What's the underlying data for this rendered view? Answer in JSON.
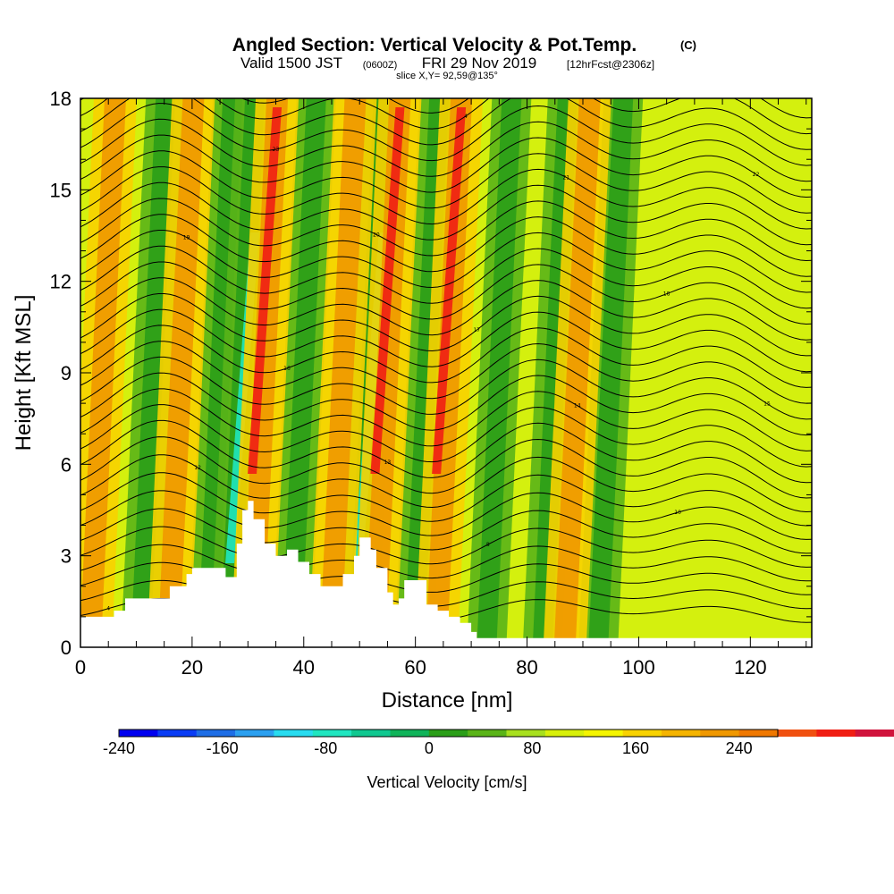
{
  "title": {
    "main": "Angled Section: Vertical Velocity & Pot.Temp.",
    "main_units": "(C)",
    "valid_prefix": "Valid 1500 JST",
    "valid_utc": "(0600Z)",
    "valid_date": "FRI 29 Nov 2019",
    "forecast": "[12hrFcst@2306z]",
    "slice": "slice X,Y= 92,59@135°"
  },
  "chart_data": {
    "type": "heatmap",
    "xlabel": "Distance [nm]",
    "ylabel": "Height [Kft MSL]",
    "xlim": [
      0,
      131
    ],
    "ylim": [
      0,
      18
    ],
    "x_ticks": [
      0,
      20,
      40,
      60,
      80,
      100,
      120
    ],
    "y_ticks": [
      0,
      3,
      6,
      9,
      12,
      15,
      18
    ],
    "grid": false,
    "colorbar": {
      "label": "Vertical Velocity [cm/s]",
      "range": [
        -240,
        270
      ],
      "step": 30,
      "tick_labels": [
        "-240",
        "-160",
        "-80",
        "0",
        "80",
        "160",
        "240"
      ],
      "tick_values": [
        -240,
        -160,
        -80,
        0,
        80,
        160,
        240
      ],
      "colors": [
        "#0000f0",
        "#0a3cf5",
        "#1e6ee6",
        "#2ba0f0",
        "#28dcf0",
        "#20e6c0",
        "#10c890",
        "#10b45a",
        "#2a9e18",
        "#5ab418",
        "#a8e01e",
        "#d8f00a",
        "#f5f500",
        "#f8d200",
        "#f5b400",
        "#f09800",
        "#f07800",
        "#f05010",
        "#f01e14",
        "#d0143c",
        "#b00e50",
        "#8c0a64",
        "#6e0e78"
      ]
    },
    "features": {
      "updrafts_x_nm": [
        4,
        18,
        33,
        47,
        55,
        66,
        89
      ],
      "downdrafts_x_nm": [
        13,
        25,
        29,
        40,
        52,
        62,
        75,
        85,
        95
      ],
      "terrain_profile_x": [
        0,
        6,
        8,
        12,
        16,
        19,
        20,
        23,
        26,
        28,
        29,
        30,
        31,
        33,
        35,
        37,
        39,
        41,
        43,
        45,
        47,
        49,
        50,
        51,
        52,
        53,
        55,
        56,
        57,
        58,
        60,
        62,
        64,
        66,
        68,
        70,
        71,
        131
      ],
      "terrain_profile_kft": [
        1.0,
        1.2,
        1.6,
        1.6,
        2.0,
        2.4,
        2.6,
        2.6,
        2.3,
        3.4,
        4.5,
        4.8,
        4.2,
        3.4,
        3.0,
        3.2,
        2.8,
        2.4,
        2.0,
        2.0,
        2.4,
        3.0,
        3.6,
        3.6,
        3.2,
        2.6,
        1.8,
        1.4,
        1.6,
        2.2,
        2.2,
        1.4,
        1.2,
        1.0,
        0.8,
        0.5,
        0.3,
        0.3
      ]
    },
    "theta_contour_labels": [
      "4",
      "6",
      "8",
      "10",
      "12",
      "13",
      "14",
      "15",
      "16",
      "17",
      "18",
      "19",
      "20",
      "21",
      "22",
      "23"
    ]
  }
}
